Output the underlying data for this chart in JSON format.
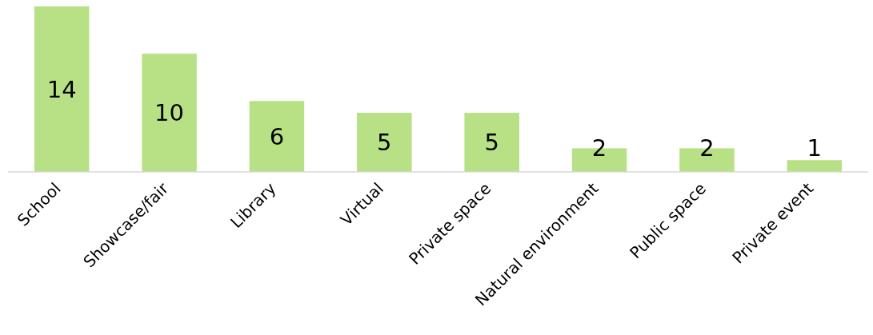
{
  "chart_data": {
    "type": "bar",
    "categories": [
      "School",
      "Showcase/fair",
      "Library",
      "Virtual",
      "Private space",
      "Natural environment",
      "Public space",
      "Private event"
    ],
    "values": [
      14,
      10,
      6,
      5,
      5,
      2,
      2,
      1
    ],
    "color": "#b8e186",
    "data_labels": true
  }
}
